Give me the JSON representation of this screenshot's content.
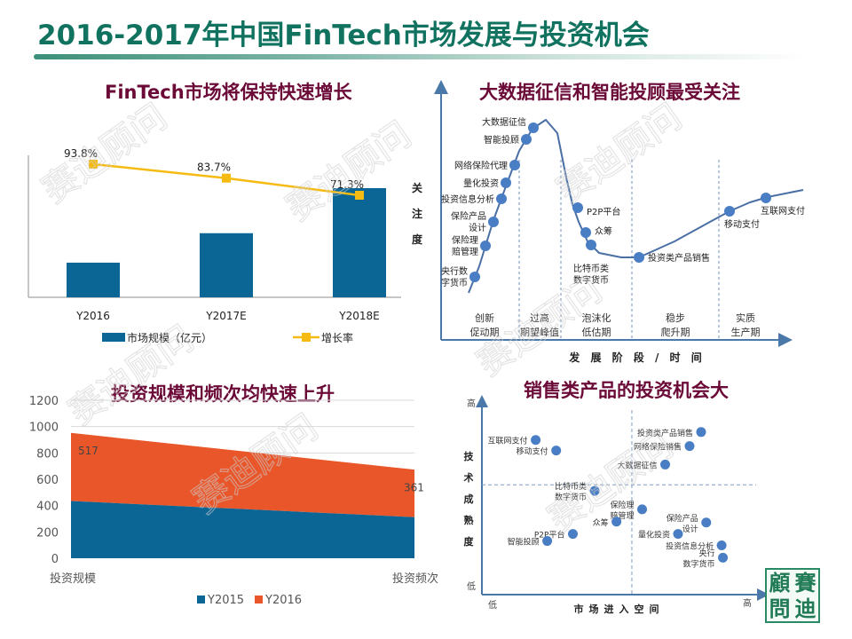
{
  "slide": {
    "title": "2016-2017年中国FinTech市场发展与投资机会",
    "title_color": "#11735f",
    "panel_title_color": "#6b0a37"
  },
  "watermark": {
    "text": "赛迪顾问"
  },
  "logo": {
    "chars": [
      "顧",
      "賽",
      "問",
      "迪"
    ],
    "color": "#1f7a55"
  },
  "chart_data": [
    {
      "id": "market-growth",
      "type": "bar",
      "title": "FinTech市场将保持快速增长",
      "categories": [
        "Y2016",
        "Y2017E",
        "Y2018E"
      ],
      "series": [
        {
          "name": "市场规模（亿元）",
          "type": "bar",
          "color": "#0b6595",
          "values": [
            1,
            1.85,
            3.15
          ]
        },
        {
          "name": "增长率",
          "type": "line",
          "color": "#f6bb12",
          "values": [
            93.8,
            83.7,
            71.3
          ],
          "labels": [
            "93.8%",
            "83.7%",
            "71.3%"
          ]
        }
      ],
      "xlabel": "",
      "ylabel": "",
      "legend": "bottom",
      "grid": false
    },
    {
      "id": "hype-cycle",
      "type": "line",
      "title": "大数据征信和智能投顾最受关注",
      "ylabel": "关注度",
      "xlabel": "发展阶段/时间",
      "stages": [
        {
          "line1": "创新",
          "line2": "促动期"
        },
        {
          "line1": "过高",
          "line2": "期望峰值"
        },
        {
          "line1": "泡沫化",
          "line2": "低估期"
        },
        {
          "line1": "稳步",
          "line2": "爬升期"
        },
        {
          "line1": "实质",
          "line2": "生产期"
        }
      ],
      "points": [
        {
          "label": [
            "央行数",
            "字货币"
          ],
          "side": "left"
        },
        {
          "label": [
            "保险理",
            "赔管理"
          ],
          "side": "left"
        },
        {
          "label": [
            "保险产品",
            "设计"
          ],
          "side": "left"
        },
        {
          "label": [
            "投资信息分析"
          ],
          "side": "left"
        },
        {
          "label": [
            "量化投资"
          ],
          "side": "left"
        },
        {
          "label": [
            "网络保险代理"
          ],
          "side": "left"
        },
        {
          "label": [
            "智能投顾"
          ],
          "side": "left"
        },
        {
          "label": [
            "大数据征信"
          ],
          "side": "left"
        },
        {
          "label": [
            "P2P平台"
          ],
          "side": "right"
        },
        {
          "label": [
            "众筹"
          ],
          "side": "right"
        },
        {
          "label": [
            "比特币类",
            "数字货币"
          ],
          "side": "below"
        },
        {
          "label": [
            "投资类产品销售"
          ],
          "side": "right"
        },
        {
          "label": [
            "移动支付"
          ],
          "side": "below"
        },
        {
          "label": [
            "互联网支付"
          ],
          "side": "below"
        }
      ],
      "line_color": "#4a6fa5",
      "point_color": "#4a7ec4"
    },
    {
      "id": "investment-area",
      "type": "area",
      "title": "投资规模和频次均快速上升",
      "categories": [
        "投资规模",
        "投资频次"
      ],
      "series": [
        {
          "name": "Y2015",
          "color": "#0b6595",
          "values": [
            435,
            312
          ]
        },
        {
          "name": "Y2016",
          "color": "#e8562a",
          "values": [
            517,
            361
          ],
          "labels": [
            "517",
            "361"
          ]
        }
      ],
      "ylim": [
        0,
        1200
      ],
      "yticks": [
        0,
        200,
        400,
        600,
        800,
        1000,
        1200
      ],
      "grid": true,
      "legend": "bottom"
    },
    {
      "id": "opportunity-matrix",
      "type": "scatter",
      "title": "销售类产品的投资机会大",
      "xlabel": "市场进入空间",
      "ylabel": "技术成熟度",
      "x_low": "低",
      "x_high": "高",
      "y_low": "低",
      "y_high": "高",
      "xlim": [
        0,
        10
      ],
      "ylim": [
        0,
        10
      ],
      "points": [
        {
          "label": [
            "投资类产品销售"
          ],
          "x": 8.2,
          "y": 9.0
        },
        {
          "label": [
            "网络保险销售"
          ],
          "x": 7.75,
          "y": 8.2
        },
        {
          "label": [
            "大数据征信"
          ],
          "x": 6.8,
          "y": 7.15
        },
        {
          "label": [
            "互联网支付"
          ],
          "x": 1.75,
          "y": 8.55
        },
        {
          "label": [
            "移动支付"
          ],
          "x": 2.55,
          "y": 7.95
        },
        {
          "label": [
            "比特币类",
            "数字货币"
          ],
          "x": 4.05,
          "y": 5.65
        },
        {
          "label": [
            "保险理",
            "赔管理"
          ],
          "x": 5.9,
          "y": 4.6
        },
        {
          "label": [
            "众筹"
          ],
          "x": 4.9,
          "y": 3.9
        },
        {
          "label": [
            "保险产品",
            "设计"
          ],
          "x": 8.4,
          "y": 3.85
        },
        {
          "label": [
            "P2P平台"
          ],
          "x": 3.2,
          "y": 3.2
        },
        {
          "label": [
            "量化投资"
          ],
          "x": 7.3,
          "y": 3.2
        },
        {
          "label": [
            "智能投顾"
          ],
          "x": 2.2,
          "y": 2.8
        },
        {
          "label": [
            "投资信息分析"
          ],
          "x": 9.0,
          "y": 2.55
        },
        {
          "label": [
            "央行",
            "数字货币"
          ],
          "x": 9.05,
          "y": 1.85
        }
      ],
      "point_color": "#4a7ec4",
      "divider_x": 5.5,
      "divider_y": 6.0
    }
  ]
}
